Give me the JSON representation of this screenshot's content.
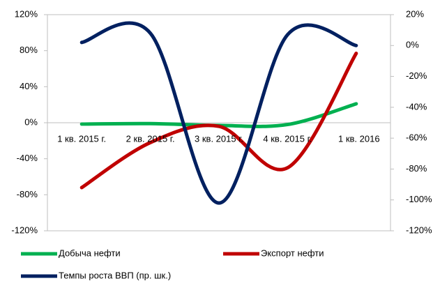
{
  "chart_data": {
    "type": "line",
    "categories": [
      "1 кв. 2015 г.",
      "2 кв. 2015 г.",
      "3 кв. 2015 г.",
      "4 кв. 2015 г.",
      "1 кв. 2016"
    ],
    "series": [
      {
        "name": "Добыча нефти",
        "color": "#00b050",
        "values": [
          -1.5,
          -1,
          -3,
          -2,
          21
        ]
      },
      {
        "name": "Экспорт нефти",
        "color": "#c00000",
        "values": [
          -72,
          -22,
          -4,
          -50,
          77
        ]
      },
      {
        "name": "Темпы роста ВВП (пр. шк.)",
        "color": "#002060",
        "values": [
          2,
          8,
          -102,
          7,
          0
        ],
        "axis": "y2"
      }
    ],
    "ylim": [
      -120,
      120
    ],
    "yticks": [
      {
        "value": -120,
        "label": "-120%"
      },
      {
        "value": -80,
        "label": "-80%"
      },
      {
        "value": -40,
        "label": "-40%"
      },
      {
        "value": 0,
        "label": "0%"
      },
      {
        "value": 40,
        "label": "40%"
      },
      {
        "value": 80,
        "label": "80%"
      },
      {
        "value": 120,
        "label": "120%"
      }
    ],
    "y2lim": [
      -120,
      20
    ],
    "y2ticks": [
      {
        "value": -120,
        "label": "-120%"
      },
      {
        "value": -100,
        "label": "-100%"
      },
      {
        "value": -80,
        "label": "-80%"
      },
      {
        "value": -60,
        "label": "-60%"
      },
      {
        "value": -40,
        "label": "-40%"
      },
      {
        "value": -20,
        "label": "-20%"
      },
      {
        "value": 0,
        "label": "0%"
      },
      {
        "value": 20,
        "label": "20%"
      }
    ]
  }
}
